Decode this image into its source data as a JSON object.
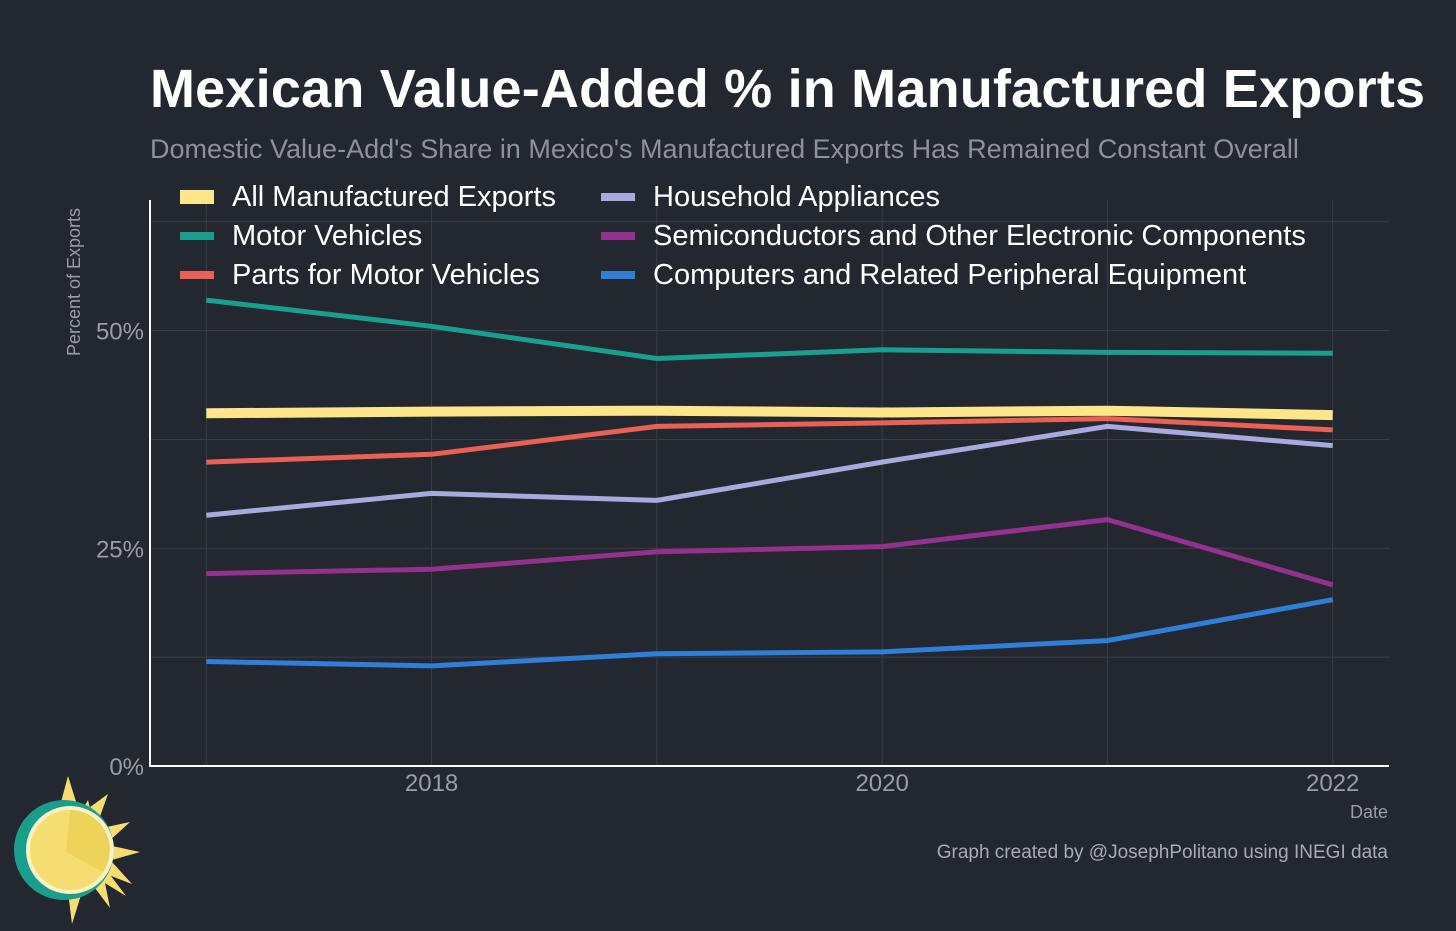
{
  "header": {
    "title": "Mexican Value-Added % in Manufactured Exports",
    "subtitle": "Domestic Value-Add's Share in Mexico's Manufactured Exports Has Remained Constant Overall"
  },
  "footer": {
    "caption": "Graph created by @JosephPolitano using INEGI data"
  },
  "logo": {
    "icon": "sun-logo-icon",
    "colors": [
      "#f6dd71",
      "#1a9e8c"
    ]
  },
  "chart_data": {
    "type": "line",
    "title": "Mexican Value-Added % in Manufactured Exports",
    "subtitle": "Domestic Value-Add's Share in Mexico's Manufactured Exports Has Remained Constant Overall",
    "xlabel": "Date",
    "ylabel": "Percent of Exports",
    "x": [
      2017,
      2018,
      2019,
      2020,
      2021,
      2022
    ],
    "xticks": [
      2018,
      2020,
      2022
    ],
    "xtick_labels": [
      "2018",
      "2020",
      "2022"
    ],
    "xlim": [
      2016.75,
      2022.25
    ],
    "ylim": [
      0,
      65
    ],
    "yticks": [
      0,
      25,
      50
    ],
    "ytick_labels": [
      "0%",
      "25%",
      "50%"
    ],
    "grid": true,
    "legend_position": "top",
    "series": [
      {
        "name": "All Manufactured Exports",
        "color": "#fde58a",
        "values": [
          40.5,
          40.7,
          40.8,
          40.6,
          40.8,
          40.3
        ]
      },
      {
        "name": "Motor Vehicles",
        "color": "#17a08d",
        "values": [
          53.5,
          50.5,
          46.8,
          47.8,
          47.5,
          47.4
        ]
      },
      {
        "name": "Parts for Motor Vehicles",
        "color": "#ea6055",
        "values": [
          34.9,
          35.8,
          39.0,
          39.4,
          39.9,
          38.6
        ]
      },
      {
        "name": "Household Appliances",
        "color": "#a7a9df",
        "values": [
          28.8,
          31.3,
          30.5,
          34.9,
          39.0,
          36.8
        ]
      },
      {
        "name": "Semiconductors and Other Electronic Components",
        "color": "#93318e",
        "values": [
          22.1,
          22.6,
          24.6,
          25.2,
          28.3,
          20.8
        ]
      },
      {
        "name": "Computers and Related Peripheral Equipment",
        "color": "#2e7fd8",
        "values": [
          12.0,
          11.5,
          12.9,
          13.1,
          14.4,
          19.1
        ]
      }
    ]
  }
}
